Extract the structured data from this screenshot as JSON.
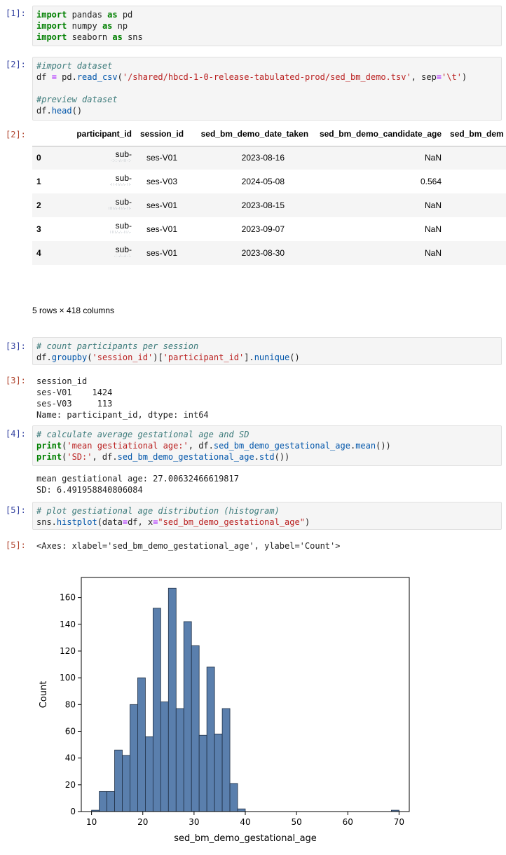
{
  "cells": [
    {
      "in_prompt": "[1]:",
      "code": [
        [
          [
            "import",
            "kw"
          ],
          [
            " pandas ",
            "plain"
          ],
          [
            "as",
            "kw"
          ],
          [
            " pd",
            "plain"
          ]
        ],
        [
          [
            "import",
            "kw"
          ],
          [
            " numpy ",
            "plain"
          ],
          [
            "as",
            "kw"
          ],
          [
            " np",
            "plain"
          ]
        ],
        [
          [
            "import",
            "kw"
          ],
          [
            " seaborn ",
            "plain"
          ],
          [
            "as",
            "kw"
          ],
          [
            " sns",
            "plain"
          ]
        ]
      ]
    },
    {
      "in_prompt": "[2]:",
      "code": [
        [
          [
            "#import dataset",
            "cm"
          ]
        ],
        [
          [
            "df ",
            "plain"
          ],
          [
            "=",
            "op"
          ],
          [
            " pd.",
            "plain"
          ],
          [
            "read_csv",
            "fn"
          ],
          [
            "(",
            "plain"
          ],
          [
            "'/shared/hbcd-1-0-release-tabulated-prod/sed_bm_demo.tsv'",
            "str"
          ],
          [
            ", sep",
            "plain"
          ],
          [
            "=",
            "op"
          ],
          [
            "'\\t'",
            "str"
          ],
          [
            ")",
            "plain"
          ]
        ],
        [
          [
            "",
            "plain"
          ]
        ],
        [
          [
            "#preview dataset",
            "cm"
          ]
        ],
        [
          [
            "df.",
            "plain"
          ],
          [
            "head",
            "fn"
          ],
          [
            "()",
            "plain"
          ]
        ]
      ],
      "out_prompt": "[2]:",
      "table": {
        "columns": [
          "",
          "participant_id",
          "session_id",
          "sed_bm_demo_date_taken",
          "sed_bm_demo_candidate_age",
          "sed_bm_dem"
        ],
        "rows": [
          {
            "index": "0",
            "participant_id": "sub-",
            "pid_blur": "·:·:·∴·∷·:·",
            "session_id": "ses-V01",
            "date": "2023-08-16",
            "age": "NaN"
          },
          {
            "index": "1",
            "participant_id": "sub-",
            "pid_blur": "·∷·∷∴∴·∷·",
            "session_id": "ses-V03",
            "date": "2024-05-08",
            "age": "0.564"
          },
          {
            "index": "2",
            "participant_id": "sub-",
            "pid_blur": "∷∷∴·∷∴·∷·",
            "session_id": "ses-V01",
            "date": "2023-08-15",
            "age": "NaN"
          },
          {
            "index": "3",
            "participant_id": "sub-",
            "pid_blur": "∷∷∴∴·∷∴·",
            "session_id": "ses-V01",
            "date": "2023-09-07",
            "age": "NaN"
          },
          {
            "index": "4",
            "participant_id": "sub-",
            "pid_blur": "·:·∴·∴·:·",
            "session_id": "ses-V01",
            "date": "2023-08-30",
            "age": "NaN"
          }
        ],
        "footer": "5 rows × 418 columns"
      }
    },
    {
      "in_prompt": "[3]:",
      "code": [
        [
          [
            "# count participants per session",
            "cm"
          ]
        ],
        [
          [
            "df.",
            "plain"
          ],
          [
            "groupby",
            "fn"
          ],
          [
            "(",
            "plain"
          ],
          [
            "'session_id'",
            "str"
          ],
          [
            ")[",
            "plain"
          ],
          [
            "'participant_id'",
            "str"
          ],
          [
            "].",
            "plain"
          ],
          [
            "nunique",
            "fn"
          ],
          [
            "()",
            "plain"
          ]
        ]
      ],
      "out_prompt": "[3]:",
      "output": [
        "session_id",
        "ses-V01    1424",
        "ses-V03     113",
        "Name: participant_id, dtype: int64"
      ]
    },
    {
      "in_prompt": "[4]:",
      "code": [
        [
          [
            "# calculate average gestational age and SD",
            "cm"
          ]
        ],
        [
          [
            "print",
            "kw"
          ],
          [
            "(",
            "plain"
          ],
          [
            "'mean gestiational age:'",
            "str"
          ],
          [
            ", df.",
            "plain"
          ],
          [
            "sed_bm_demo_gestational_age",
            "fn"
          ],
          [
            ".",
            "plain"
          ],
          [
            "mean",
            "fn"
          ],
          [
            "())",
            "plain"
          ]
        ],
        [
          [
            "print",
            "kw"
          ],
          [
            "(",
            "plain"
          ],
          [
            "'SD:'",
            "str"
          ],
          [
            ", df.",
            "plain"
          ],
          [
            "sed_bm_demo_gestational_age",
            "fn"
          ],
          [
            ".",
            "plain"
          ],
          [
            "std",
            "fn"
          ],
          [
            "())",
            "plain"
          ]
        ]
      ],
      "output": [
        "mean gestiational age: 27.00632466619817",
        "SD: 6.491958840806084"
      ]
    },
    {
      "in_prompt": "[5]:",
      "code": [
        [
          [
            "# plot gestiational age distribution (histogram)",
            "cm"
          ]
        ],
        [
          [
            "sns.",
            "plain"
          ],
          [
            "histplot",
            "fn"
          ],
          [
            "(data",
            "plain"
          ],
          [
            "=",
            "op"
          ],
          [
            "df, x",
            "plain"
          ],
          [
            "=",
            "op"
          ],
          [
            "\"sed_bm_demo_gestational_age\"",
            "str"
          ],
          [
            ")",
            "plain"
          ]
        ]
      ],
      "out_prompt": "[5]:",
      "output": [
        "<Axes: xlabel='sed_bm_demo_gestational_age', ylabel='Count'>"
      ]
    }
  ],
  "colors": {
    "bar_fill": "#5a7fad",
    "bar_edge": "#1f2f45"
  },
  "chart_data": {
    "type": "bar",
    "title": "",
    "xlabel": "sed_bm_demo_gestational_age",
    "ylabel": "Count",
    "xlim": [
      8,
      72
    ],
    "ylim": [
      0,
      175
    ],
    "x_ticks": [
      10,
      20,
      30,
      40,
      50,
      60,
      70
    ],
    "y_ticks": [
      0,
      20,
      40,
      60,
      80,
      100,
      120,
      140,
      160
    ],
    "grid": false,
    "legend": "none",
    "bin_width": 1.5,
    "bins": [
      {
        "x0": 10.0,
        "count": 1
      },
      {
        "x0": 11.5,
        "count": 15
      },
      {
        "x0": 13.0,
        "count": 15
      },
      {
        "x0": 14.5,
        "count": 46
      },
      {
        "x0": 16.0,
        "count": 42
      },
      {
        "x0": 17.5,
        "count": 80
      },
      {
        "x0": 19.0,
        "count": 100
      },
      {
        "x0": 20.5,
        "count": 56
      },
      {
        "x0": 22.0,
        "count": 152
      },
      {
        "x0": 23.5,
        "count": 82
      },
      {
        "x0": 25.0,
        "count": 167
      },
      {
        "x0": 26.5,
        "count": 77
      },
      {
        "x0": 28.0,
        "count": 142
      },
      {
        "x0": 29.5,
        "count": 124
      },
      {
        "x0": 31.0,
        "count": 57
      },
      {
        "x0": 32.5,
        "count": 108
      },
      {
        "x0": 34.0,
        "count": 58
      },
      {
        "x0": 35.5,
        "count": 77
      },
      {
        "x0": 37.0,
        "count": 21
      },
      {
        "x0": 38.5,
        "count": 2
      },
      {
        "x0": 68.5,
        "count": 1
      }
    ]
  }
}
